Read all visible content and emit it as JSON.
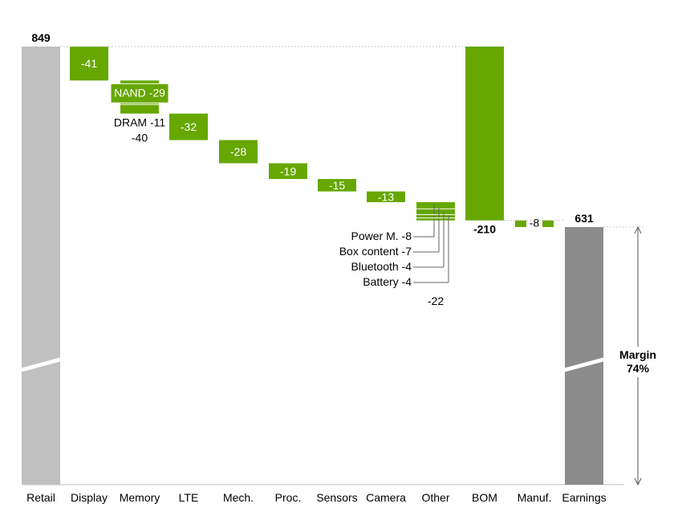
{
  "chart_data": {
    "type": "waterfall",
    "title": "",
    "colors": {
      "total_light": "#c0c0c0",
      "total_dark": "#8c8c8c",
      "delta": "#66a700",
      "connector": "#c8c8c8",
      "axis": "#c0c0c0"
    },
    "bars": [
      {
        "id": "retail",
        "category": "Retail",
        "kind": "total",
        "value": 849,
        "label": "849",
        "bold": true,
        "axis_break": true
      },
      {
        "id": "display",
        "category": "Display",
        "kind": "delta",
        "value": -41,
        "label": "-41"
      },
      {
        "id": "memory",
        "category": "Memory",
        "kind": "delta",
        "value": -40,
        "label": "-40",
        "segments": [
          {
            "label": "NAND -29",
            "value": -29
          },
          {
            "label": "DRAM -11",
            "value": -11
          }
        ]
      },
      {
        "id": "lte",
        "category": "LTE",
        "kind": "delta",
        "value": -32,
        "label": "-32"
      },
      {
        "id": "mech",
        "category": "Mech.",
        "kind": "delta",
        "value": -28,
        "label": "-28"
      },
      {
        "id": "proc",
        "category": "Proc.",
        "kind": "delta",
        "value": -19,
        "label": "-19"
      },
      {
        "id": "sensors",
        "category": "Sensors",
        "kind": "delta",
        "value": -15,
        "label": "-15"
      },
      {
        "id": "camera",
        "category": "Camera",
        "kind": "delta",
        "value": -13,
        "label": "-13"
      },
      {
        "id": "other",
        "category": "Other",
        "kind": "delta",
        "value": -22,
        "label": "-22",
        "segments": [
          {
            "label": "Power M. -8",
            "value": -8
          },
          {
            "label": "Box content -7",
            "value": -7
          },
          {
            "label": "Bluetooth -4",
            "value": -4
          },
          {
            "label": "Battery -4",
            "value": -4
          }
        ]
      },
      {
        "id": "bom",
        "category": "BOM",
        "kind": "subtotal_delta",
        "value": -210,
        "label": "-210",
        "bold": true
      },
      {
        "id": "manuf",
        "category": "Manuf.",
        "kind": "delta",
        "value": -8,
        "label": "-8"
      },
      {
        "id": "earnings",
        "category": "Earnings",
        "kind": "total",
        "value": 631,
        "label": "631",
        "bold": true,
        "axis_break": true
      }
    ],
    "annotation": {
      "line1": "Margin",
      "line2": "74%",
      "from": 0,
      "to": 631
    }
  }
}
